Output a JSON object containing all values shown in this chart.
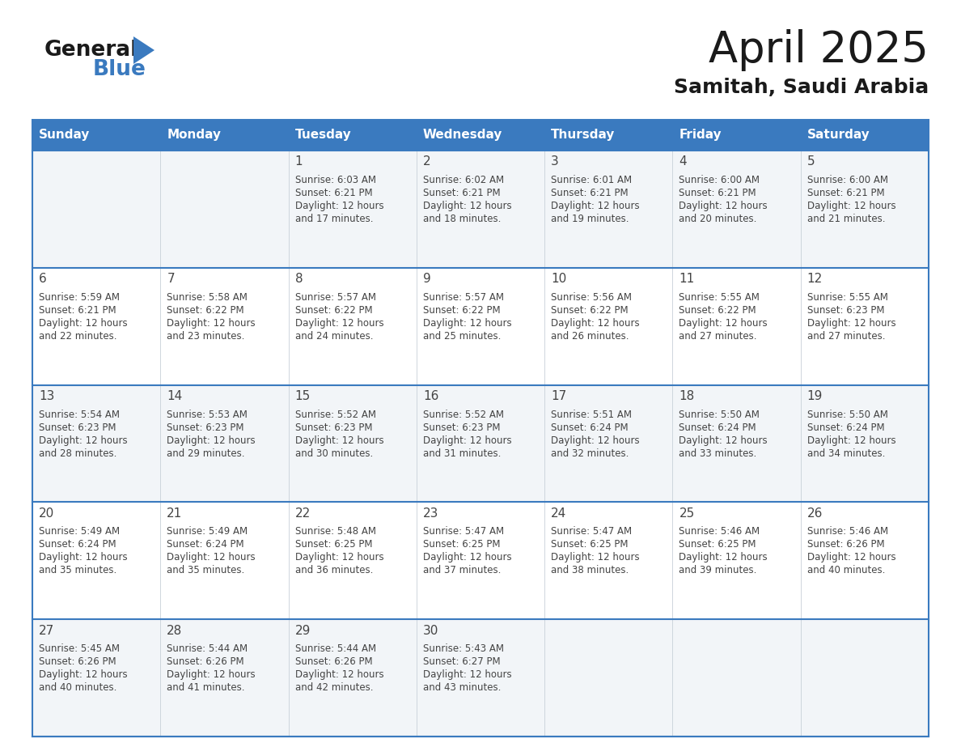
{
  "title": "April 2025",
  "subtitle": "Samitah, Saudi Arabia",
  "header_bg": "#3a7abf",
  "header_text": "#ffffff",
  "border_color": "#3a7abf",
  "text_color": "#444444",
  "row_bg_odd": "#f2f5f8",
  "row_bg_even": "#ffffff",
  "days_of_week": [
    "Sunday",
    "Monday",
    "Tuesday",
    "Wednesday",
    "Thursday",
    "Friday",
    "Saturday"
  ],
  "weeks": [
    [
      {
        "day": "",
        "sunrise": "",
        "sunset": "",
        "daylight": ""
      },
      {
        "day": "",
        "sunrise": "",
        "sunset": "",
        "daylight": ""
      },
      {
        "day": "1",
        "sunrise": "Sunrise: 6:03 AM",
        "sunset": "Sunset: 6:21 PM",
        "daylight": "Daylight: 12 hours\nand 17 minutes."
      },
      {
        "day": "2",
        "sunrise": "Sunrise: 6:02 AM",
        "sunset": "Sunset: 6:21 PM",
        "daylight": "Daylight: 12 hours\nand 18 minutes."
      },
      {
        "day": "3",
        "sunrise": "Sunrise: 6:01 AM",
        "sunset": "Sunset: 6:21 PM",
        "daylight": "Daylight: 12 hours\nand 19 minutes."
      },
      {
        "day": "4",
        "sunrise": "Sunrise: 6:00 AM",
        "sunset": "Sunset: 6:21 PM",
        "daylight": "Daylight: 12 hours\nand 20 minutes."
      },
      {
        "day": "5",
        "sunrise": "Sunrise: 6:00 AM",
        "sunset": "Sunset: 6:21 PM",
        "daylight": "Daylight: 12 hours\nand 21 minutes."
      }
    ],
    [
      {
        "day": "6",
        "sunrise": "Sunrise: 5:59 AM",
        "sunset": "Sunset: 6:21 PM",
        "daylight": "Daylight: 12 hours\nand 22 minutes."
      },
      {
        "day": "7",
        "sunrise": "Sunrise: 5:58 AM",
        "sunset": "Sunset: 6:22 PM",
        "daylight": "Daylight: 12 hours\nand 23 minutes."
      },
      {
        "day": "8",
        "sunrise": "Sunrise: 5:57 AM",
        "sunset": "Sunset: 6:22 PM",
        "daylight": "Daylight: 12 hours\nand 24 minutes."
      },
      {
        "day": "9",
        "sunrise": "Sunrise: 5:57 AM",
        "sunset": "Sunset: 6:22 PM",
        "daylight": "Daylight: 12 hours\nand 25 minutes."
      },
      {
        "day": "10",
        "sunrise": "Sunrise: 5:56 AM",
        "sunset": "Sunset: 6:22 PM",
        "daylight": "Daylight: 12 hours\nand 26 minutes."
      },
      {
        "day": "11",
        "sunrise": "Sunrise: 5:55 AM",
        "sunset": "Sunset: 6:22 PM",
        "daylight": "Daylight: 12 hours\nand 27 minutes."
      },
      {
        "day": "12",
        "sunrise": "Sunrise: 5:55 AM",
        "sunset": "Sunset: 6:23 PM",
        "daylight": "Daylight: 12 hours\nand 27 minutes."
      }
    ],
    [
      {
        "day": "13",
        "sunrise": "Sunrise: 5:54 AM",
        "sunset": "Sunset: 6:23 PM",
        "daylight": "Daylight: 12 hours\nand 28 minutes."
      },
      {
        "day": "14",
        "sunrise": "Sunrise: 5:53 AM",
        "sunset": "Sunset: 6:23 PM",
        "daylight": "Daylight: 12 hours\nand 29 minutes."
      },
      {
        "day": "15",
        "sunrise": "Sunrise: 5:52 AM",
        "sunset": "Sunset: 6:23 PM",
        "daylight": "Daylight: 12 hours\nand 30 minutes."
      },
      {
        "day": "16",
        "sunrise": "Sunrise: 5:52 AM",
        "sunset": "Sunset: 6:23 PM",
        "daylight": "Daylight: 12 hours\nand 31 minutes."
      },
      {
        "day": "17",
        "sunrise": "Sunrise: 5:51 AM",
        "sunset": "Sunset: 6:24 PM",
        "daylight": "Daylight: 12 hours\nand 32 minutes."
      },
      {
        "day": "18",
        "sunrise": "Sunrise: 5:50 AM",
        "sunset": "Sunset: 6:24 PM",
        "daylight": "Daylight: 12 hours\nand 33 minutes."
      },
      {
        "day": "19",
        "sunrise": "Sunrise: 5:50 AM",
        "sunset": "Sunset: 6:24 PM",
        "daylight": "Daylight: 12 hours\nand 34 minutes."
      }
    ],
    [
      {
        "day": "20",
        "sunrise": "Sunrise: 5:49 AM",
        "sunset": "Sunset: 6:24 PM",
        "daylight": "Daylight: 12 hours\nand 35 minutes."
      },
      {
        "day": "21",
        "sunrise": "Sunrise: 5:49 AM",
        "sunset": "Sunset: 6:24 PM",
        "daylight": "Daylight: 12 hours\nand 35 minutes."
      },
      {
        "day": "22",
        "sunrise": "Sunrise: 5:48 AM",
        "sunset": "Sunset: 6:25 PM",
        "daylight": "Daylight: 12 hours\nand 36 minutes."
      },
      {
        "day": "23",
        "sunrise": "Sunrise: 5:47 AM",
        "sunset": "Sunset: 6:25 PM",
        "daylight": "Daylight: 12 hours\nand 37 minutes."
      },
      {
        "day": "24",
        "sunrise": "Sunrise: 5:47 AM",
        "sunset": "Sunset: 6:25 PM",
        "daylight": "Daylight: 12 hours\nand 38 minutes."
      },
      {
        "day": "25",
        "sunrise": "Sunrise: 5:46 AM",
        "sunset": "Sunset: 6:25 PM",
        "daylight": "Daylight: 12 hours\nand 39 minutes."
      },
      {
        "day": "26",
        "sunrise": "Sunrise: 5:46 AM",
        "sunset": "Sunset: 6:26 PM",
        "daylight": "Daylight: 12 hours\nand 40 minutes."
      }
    ],
    [
      {
        "day": "27",
        "sunrise": "Sunrise: 5:45 AM",
        "sunset": "Sunset: 6:26 PM",
        "daylight": "Daylight: 12 hours\nand 40 minutes."
      },
      {
        "day": "28",
        "sunrise": "Sunrise: 5:44 AM",
        "sunset": "Sunset: 6:26 PM",
        "daylight": "Daylight: 12 hours\nand 41 minutes."
      },
      {
        "day": "29",
        "sunrise": "Sunrise: 5:44 AM",
        "sunset": "Sunset: 6:26 PM",
        "daylight": "Daylight: 12 hours\nand 42 minutes."
      },
      {
        "day": "30",
        "sunrise": "Sunrise: 5:43 AM",
        "sunset": "Sunset: 6:27 PM",
        "daylight": "Daylight: 12 hours\nand 43 minutes."
      },
      {
        "day": "",
        "sunrise": "",
        "sunset": "",
        "daylight": ""
      },
      {
        "day": "",
        "sunrise": "",
        "sunset": "",
        "daylight": ""
      },
      {
        "day": "",
        "sunrise": "",
        "sunset": "",
        "daylight": ""
      }
    ]
  ]
}
